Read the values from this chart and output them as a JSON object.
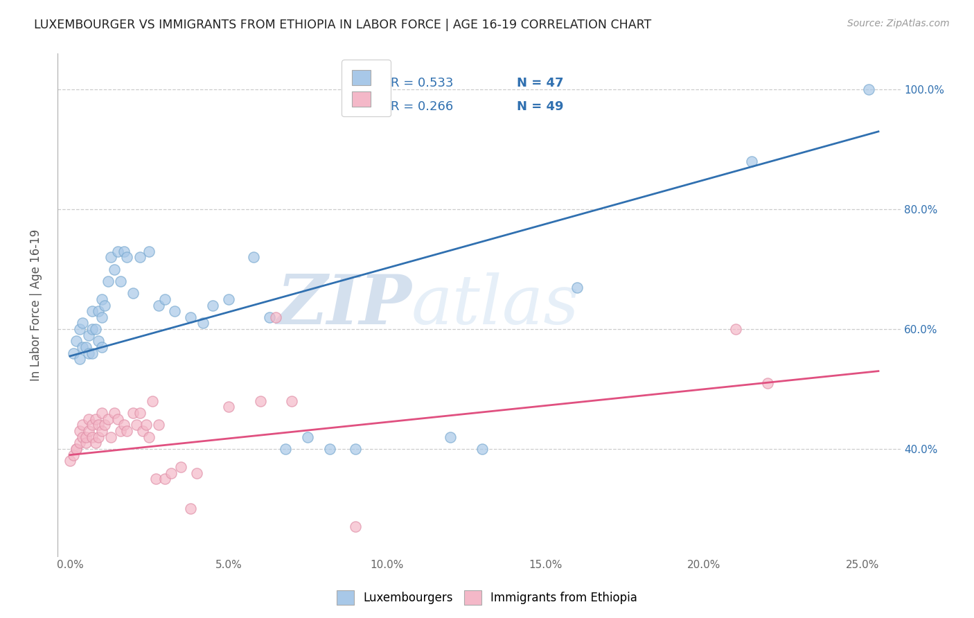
{
  "title": "LUXEMBOURGER VS IMMIGRANTS FROM ETHIOPIA IN LABOR FORCE | AGE 16-19 CORRELATION CHART",
  "source": "Source: ZipAtlas.com",
  "ylabel_label": "In Labor Force | Age 16-19",
  "xlim": [
    -0.004,
    0.262
  ],
  "ylim": [
    0.22,
    1.06
  ],
  "blue_R": 0.533,
  "blue_N": 47,
  "pink_R": 0.266,
  "pink_N": 49,
  "blue_color": "#a8c8e8",
  "pink_color": "#f4b8c8",
  "blue_line_color": "#3070b0",
  "pink_line_color": "#e05080",
  "blue_edge_color": "#7aaad0",
  "pink_edge_color": "#e090a8",
  "watermark_zip": "ZIP",
  "watermark_atlas": "atlas",
  "grid_color": "#cccccc",
  "background_color": "#ffffff",
  "blue_scatter_x": [
    0.001,
    0.002,
    0.003,
    0.003,
    0.004,
    0.004,
    0.005,
    0.006,
    0.006,
    0.007,
    0.007,
    0.007,
    0.008,
    0.009,
    0.009,
    0.01,
    0.01,
    0.01,
    0.011,
    0.012,
    0.013,
    0.014,
    0.015,
    0.016,
    0.017,
    0.018,
    0.02,
    0.022,
    0.025,
    0.028,
    0.03,
    0.033,
    0.038,
    0.042,
    0.045,
    0.05,
    0.058,
    0.063,
    0.068,
    0.075,
    0.082,
    0.09,
    0.12,
    0.13,
    0.16,
    0.215,
    0.252
  ],
  "blue_scatter_y": [
    0.56,
    0.58,
    0.55,
    0.6,
    0.57,
    0.61,
    0.57,
    0.56,
    0.59,
    0.56,
    0.6,
    0.63,
    0.6,
    0.63,
    0.58,
    0.57,
    0.62,
    0.65,
    0.64,
    0.68,
    0.72,
    0.7,
    0.73,
    0.68,
    0.73,
    0.72,
    0.66,
    0.72,
    0.73,
    0.64,
    0.65,
    0.63,
    0.62,
    0.61,
    0.64,
    0.65,
    0.72,
    0.62,
    0.4,
    0.42,
    0.4,
    0.4,
    0.42,
    0.4,
    0.67,
    0.88,
    1.0
  ],
  "pink_scatter_x": [
    0.0,
    0.001,
    0.002,
    0.002,
    0.003,
    0.003,
    0.004,
    0.004,
    0.005,
    0.005,
    0.006,
    0.006,
    0.007,
    0.007,
    0.008,
    0.008,
    0.009,
    0.009,
    0.01,
    0.01,
    0.011,
    0.012,
    0.013,
    0.014,
    0.015,
    0.016,
    0.017,
    0.018,
    0.02,
    0.021,
    0.022,
    0.023,
    0.024,
    0.025,
    0.026,
    0.027,
    0.028,
    0.03,
    0.032,
    0.035,
    0.038,
    0.04,
    0.05,
    0.06,
    0.065,
    0.07,
    0.09,
    0.21,
    0.22
  ],
  "pink_scatter_y": [
    0.38,
    0.39,
    0.4,
    0.4,
    0.41,
    0.43,
    0.42,
    0.44,
    0.41,
    0.42,
    0.43,
    0.45,
    0.44,
    0.42,
    0.41,
    0.45,
    0.42,
    0.44,
    0.43,
    0.46,
    0.44,
    0.45,
    0.42,
    0.46,
    0.45,
    0.43,
    0.44,
    0.43,
    0.46,
    0.44,
    0.46,
    0.43,
    0.44,
    0.42,
    0.48,
    0.35,
    0.44,
    0.35,
    0.36,
    0.37,
    0.3,
    0.36,
    0.47,
    0.48,
    0.62,
    0.48,
    0.27,
    0.6,
    0.51
  ],
  "blue_line_x0": 0.0,
  "blue_line_y0": 0.555,
  "blue_line_x1": 0.255,
  "blue_line_y1": 0.93,
  "pink_line_x0": 0.0,
  "pink_line_y0": 0.39,
  "pink_line_x1": 0.255,
  "pink_line_y1": 0.53,
  "xlabel_vals": [
    0.0,
    0.05,
    0.1,
    0.15,
    0.2,
    0.25
  ],
  "xlabel_labels": [
    "0.0%",
    "5.0%",
    "10.0%",
    "15.0%",
    "20.0%",
    "25.0%"
  ],
  "ylabel_vals": [
    0.4,
    0.6,
    0.8,
    1.0
  ],
  "ylabel_labels": [
    "40.0%",
    "60.0%",
    "80.0%",
    "100.0%"
  ]
}
